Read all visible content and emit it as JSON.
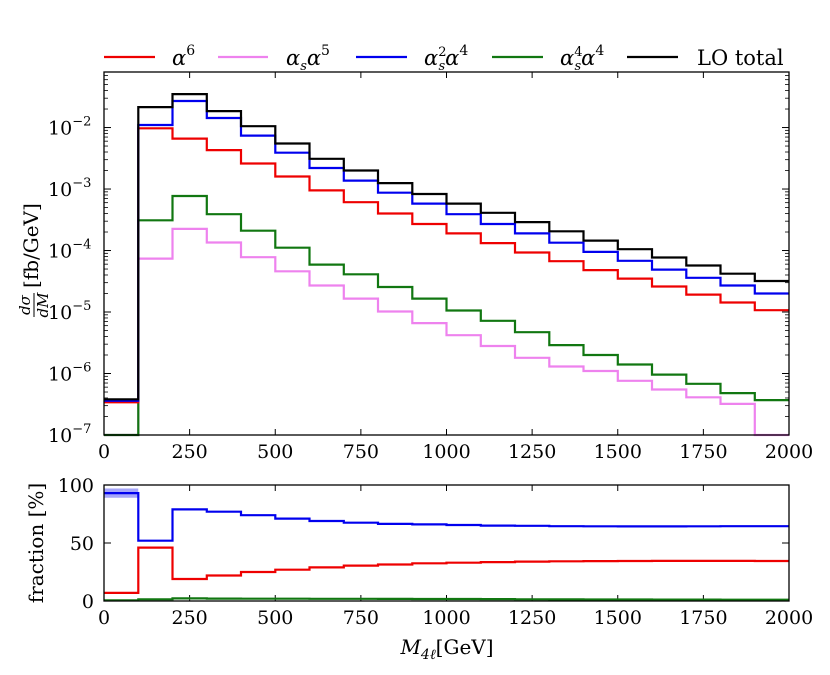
{
  "chart_data": [
    {
      "type": "line",
      "step": true,
      "yscale": "log",
      "xlim": [
        0,
        2000
      ],
      "ylim": [
        1e-07,
        0.08
      ],
      "xlabel": "",
      "ylabel": "dσ/dM [fb/GeV]",
      "ylabel_parts": {
        "num": "dσ",
        "den": "dM",
        "unit": "[fb/GeV]"
      },
      "x_ticks": [
        0,
        250,
        500,
        750,
        1000,
        1250,
        1500,
        1750,
        2000
      ],
      "y_ticks": [
        {
          "value": 0.01,
          "mantissa": "10",
          "exp": "−2"
        },
        {
          "value": 0.001,
          "mantissa": "10",
          "exp": "−3"
        },
        {
          "value": 0.0001,
          "mantissa": "10",
          "exp": "−4"
        },
        {
          "value": 1e-05,
          "mantissa": "10",
          "exp": "−5"
        },
        {
          "value": 1e-06,
          "mantissa": "10",
          "exp": "−6"
        },
        {
          "value": 1e-07,
          "mantissa": "10",
          "exp": "−7"
        }
      ],
      "bin_edges": [
        0,
        100,
        200,
        300,
        400,
        500,
        600,
        700,
        800,
        900,
        1000,
        1100,
        1200,
        1300,
        1400,
        1500,
        1600,
        1700,
        1800,
        1900,
        2000
      ],
      "series": [
        {
          "name": "LO total",
          "color": "#000000",
          "values": [
            3.8e-07,
            0.0215,
            0.035,
            0.0185,
            0.0105,
            0.0055,
            0.0031,
            0.002,
            0.00125,
            0.00083,
            0.00058,
            0.00041,
            0.00029,
            0.000205,
            0.000145,
            0.000105,
            7.7e-05,
            5.7e-05,
            4.2e-05,
            3.2e-05
          ]
        },
        {
          "name": "α_s^2 α^4",
          "color": "#0000ee",
          "values": [
            3.6e-07,
            0.011,
            0.027,
            0.0143,
            0.0074,
            0.0039,
            0.0022,
            0.00137,
            0.00087,
            0.00058,
            0.00039,
            0.00027,
            0.00019,
            0.000134,
            9.5e-05,
            6.8e-05,
            4.9e-05,
            3.6e-05,
            2.7e-05,
            2e-05
          ]
        },
        {
          "name": "α^6",
          "color": "#ee0000",
          "values": [
            3.4e-07,
            0.0097,
            0.0066,
            0.0043,
            0.0026,
            0.0016,
            0.00095,
            0.00061,
            0.0004,
            0.00027,
            0.00019,
            0.000132,
            9.3e-05,
            6.7e-05,
            4.8e-05,
            3.5e-05,
            2.6e-05,
            1.92e-05,
            1.43e-05,
            1.07e-05
          ]
        },
        {
          "name": "α_s^4 α^4",
          "color": "#117711",
          "values": [
            1e-09,
            0.00031,
            0.00077,
            0.00039,
            0.00021,
            0.000111,
            5.9e-05,
            4.1e-05,
            2.55e-05,
            1.65e-05,
            1.06e-05,
            7.2e-06,
            4.7e-06,
            2.9e-06,
            2e-06,
            1.4e-06,
            9.6e-07,
            6.8e-07,
            4.8e-07,
            3.7e-07
          ]
        },
        {
          "name": "α_s α^5",
          "color": "#ee82ee",
          "values": [
            1e-09,
            7.4e-05,
            0.000225,
            0.000135,
            7.8e-05,
            4.6e-05,
            2.7e-05,
            1.65e-05,
            1.02e-05,
            6.6e-06,
            4.2e-06,
            2.8e-06,
            1.8e-06,
            1.3e-06,
            1.1e-06,
            7.6e-07,
            5.5e-07,
            4.1e-07,
            3.2e-07,
            1e-09
          ]
        }
      ]
    },
    {
      "type": "line",
      "step": true,
      "yscale": "linear",
      "xlim": [
        0,
        2000
      ],
      "ylim": [
        0,
        100
      ],
      "xlabel": "M_4ℓ [GeV]",
      "xlabel_parts": {
        "main": "M",
        "sub": "4ℓ",
        "unit": "[GeV]"
      },
      "ylabel": "fraction [%]",
      "x_ticks": [
        0,
        250,
        500,
        750,
        1000,
        1250,
        1500,
        1750,
        2000
      ],
      "y_ticks": [
        0,
        50,
        100
      ],
      "bin_edges": [
        0,
        100,
        200,
        300,
        400,
        500,
        600,
        700,
        800,
        900,
        1000,
        1100,
        1200,
        1300,
        1400,
        1500,
        1600,
        1700,
        1800,
        1900,
        2000
      ],
      "series": [
        {
          "name": "α_s^2 α^4",
          "color": "#0000ee",
          "band_first_bin": [
            89,
            97
          ],
          "values": [
            93,
            52,
            79,
            77,
            74,
            71,
            69,
            67.5,
            66.5,
            66,
            65.5,
            65,
            64.8,
            64.5,
            64.4,
            64.3,
            64.3,
            64.4,
            64.5,
            64.5
          ]
        },
        {
          "name": "α^6",
          "color": "#ee0000",
          "values": [
            7,
            46,
            19,
            22,
            25,
            27,
            29,
            30.5,
            31.5,
            32.5,
            33,
            33.5,
            34,
            34.2,
            34.4,
            34.5,
            34.6,
            34.6,
            34.6,
            34.5
          ]
        },
        {
          "name": "α_s^4 α^4",
          "color": "#117711",
          "values": [
            0.5,
            1.5,
            2.2,
            2.1,
            2.0,
            2.0,
            1.9,
            1.9,
            1.8,
            1.7,
            1.7,
            1.6,
            1.5,
            1.4,
            1.3,
            1.3,
            1.2,
            1.2,
            1.1,
            1.1
          ]
        }
      ]
    }
  ],
  "legend": [
    {
      "color": "#ee0000",
      "label": {
        "base": "α",
        "sup": "6"
      }
    },
    {
      "color": "#ee82ee",
      "label": {
        "b1": "α",
        "s1": "s",
        "b2": "α",
        "sup": "5"
      }
    },
    {
      "color": "#0000ee",
      "label": {
        "b1": "α",
        "s1": "s",
        "p1": "2",
        "b2": "α",
        "sup": "4"
      }
    },
    {
      "color": "#117711",
      "label": {
        "b1": "α",
        "s1": "s",
        "p1": "4",
        "b2": "α",
        "sup": "4"
      }
    },
    {
      "color": "#000000",
      "label": {
        "text": "LO total"
      }
    }
  ]
}
